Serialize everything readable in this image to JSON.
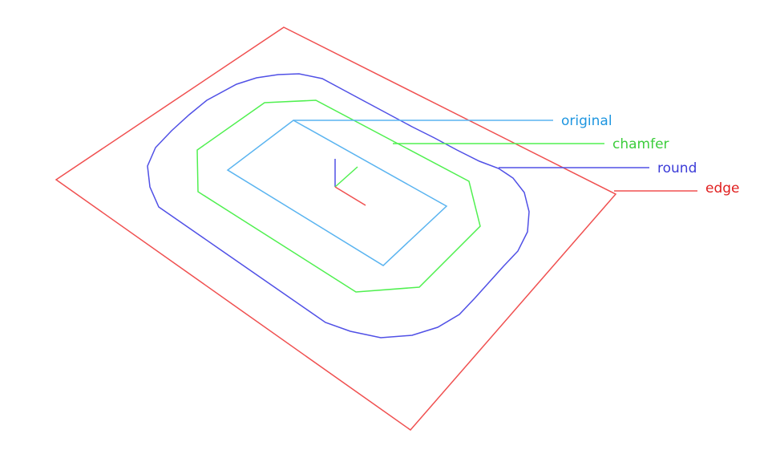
{
  "legend": {
    "original": {
      "text": "original",
      "color": "#1e96e0"
    },
    "chamfer": {
      "text": "chamfer",
      "color": "#3ccd3c"
    },
    "round": {
      "text": "round",
      "color": "#3c3cd8"
    },
    "edge": {
      "text": "edge",
      "color": "#e01e1e"
    }
  },
  "stroke_colors": {
    "original": "#5ab4f0",
    "chamfer": "#50f050",
    "round": "#5050e6",
    "edge": "#f05050"
  }
}
